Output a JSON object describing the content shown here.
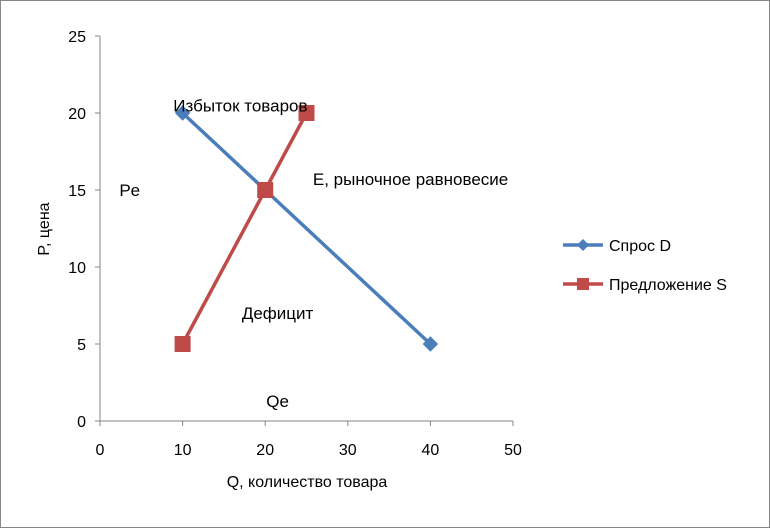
{
  "chart_data": {
    "type": "line",
    "title": "",
    "xlabel": "Q, количество товара",
    "ylabel": "P, цена",
    "xlim": [
      0,
      50
    ],
    "ylim": [
      0,
      25
    ],
    "xticks": [
      0,
      10,
      20,
      30,
      40,
      50
    ],
    "yticks": [
      0,
      5,
      10,
      15,
      20,
      25
    ],
    "grid": false,
    "legend_position": "right",
    "series": [
      {
        "name": "Спрос D",
        "color": "#4a7ebb",
        "marker": "diamond",
        "points": [
          {
            "x": 10,
            "y": 20
          },
          {
            "x": 20,
            "y": 15
          },
          {
            "x": 40,
            "y": 5
          }
        ]
      },
      {
        "name": "Предложение S",
        "color": "#be4b48",
        "marker": "square",
        "points": [
          {
            "x": 10,
            "y": 5
          },
          {
            "x": 20,
            "y": 15
          },
          {
            "x": 25,
            "y": 20
          }
        ]
      }
    ],
    "annotations": [
      {
        "text": "Избыток товаров",
        "x": 17,
        "y": 20.5
      },
      {
        "text": "Pe",
        "x": 3.6,
        "y": 15
      },
      {
        "text": "E, рыночное равновесие",
        "x": 37.6,
        "y": 15.7
      },
      {
        "text": "Дефицит",
        "x": 21.5,
        "y": 7
      },
      {
        "text": "Qe",
        "x": 21.5,
        "y": 1.3
      }
    ]
  }
}
